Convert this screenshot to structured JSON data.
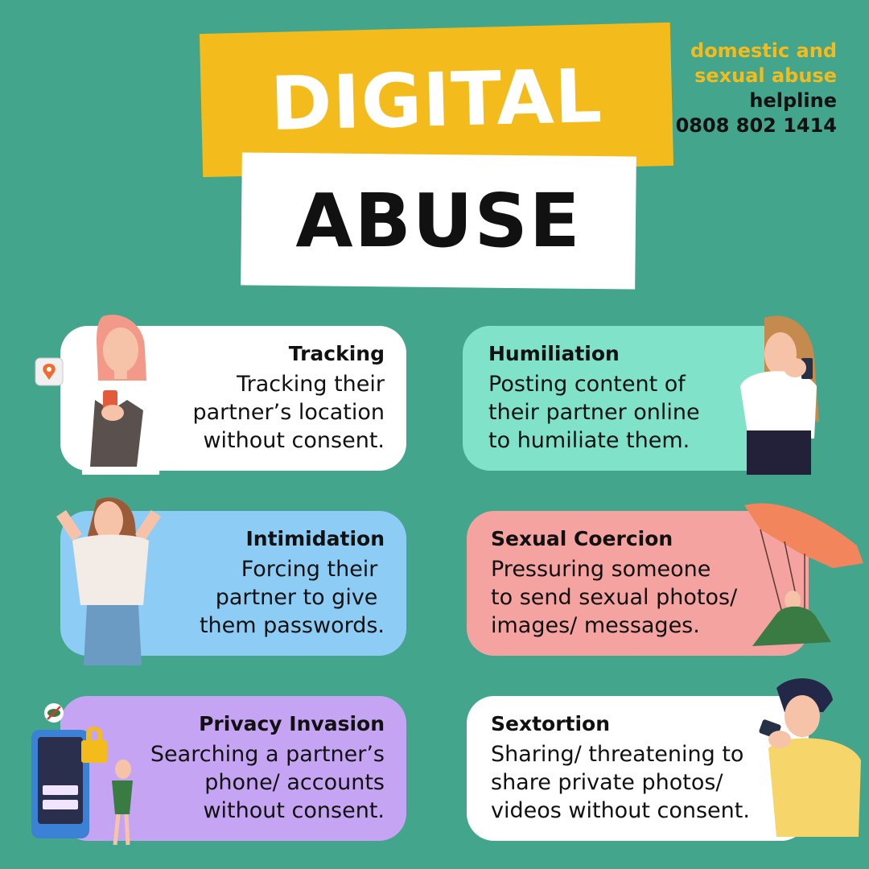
{
  "title": {
    "line1": "DIGITAL",
    "line2": "ABUSE"
  },
  "helpline": {
    "line1": "domestic and",
    "line2": "sexual abuse",
    "line3": "helpline",
    "phone": "0808 802 1414"
  },
  "cards": [
    {
      "title": "Tracking",
      "text": "Tracking their\npartner’s location\nwithout consent.",
      "color": "#ffffff"
    },
    {
      "title": "Humiliation",
      "text": "Posting content of\ntheir partner online\nto humiliate them.",
      "color": "#80e3c9"
    },
    {
      "title": "Intimidation",
      "text": "Forcing their \npartner to give \nthem passwords.",
      "color": "#8dcdf5"
    },
    {
      "title": "Sexual Coercion",
      "text": "Pressuring someone\nto send sexual photos/\nimages/ messages.",
      "color": "#f4a3a0"
    },
    {
      "title": "Privacy Invasion",
      "text": "Searching a partner’s\nphone/ accounts\nwithout consent.",
      "color": "#c5a5f3"
    },
    {
      "title": "Sextortion",
      "text": "Sharing/ threatening to\nshare private photos/\nvideos without consent.",
      "color": "#ffffff"
    }
  ],
  "colors": {
    "background": "#43a58c",
    "accent": "#f4bb1d"
  }
}
